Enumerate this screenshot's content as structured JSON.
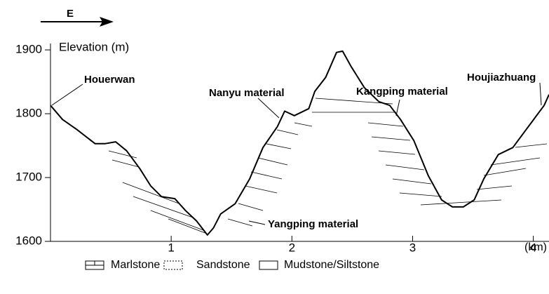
{
  "chart_data": {
    "type": "line",
    "direction": "E",
    "ylabel": "Elevation (m)",
    "xlabel": "(km)",
    "x": [
      0,
      0.1,
      0.22,
      0.37,
      0.45,
      0.54,
      0.63,
      0.74,
      0.83,
      0.92,
      1.03,
      1.12,
      1.21,
      1.3,
      1.35,
      1.41,
      1.53,
      1.65,
      1.76,
      1.88,
      1.94,
      2.02,
      2.14,
      2.19,
      2.28,
      2.37,
      2.42,
      2.49,
      2.6,
      2.72,
      2.81,
      2.9,
      3.01,
      3.13,
      3.24,
      3.33,
      3.42,
      3.51,
      3.59,
      3.71,
      3.83,
      3.94,
      4.09,
      4.13
    ],
    "values": [
      1813,
      1791,
      1775,
      1753,
      1753,
      1756,
      1742,
      1714,
      1687,
      1670,
      1667,
      1648,
      1632,
      1610,
      1621,
      1643,
      1659,
      1698,
      1747,
      1780,
      1804,
      1797,
      1808,
      1835,
      1857,
      1896,
      1898,
      1874,
      1841,
      1819,
      1813,
      1791,
      1758,
      1703,
      1665,
      1654,
      1654,
      1665,
      1698,
      1736,
      1747,
      1775,
      1813,
      1830
    ],
    "color": "#000000",
    "xlim": [
      0,
      4.13
    ],
    "xticks": [
      1,
      2,
      3,
      4
    ],
    "ylim": [
      1600,
      1910
    ],
    "yticks": [
      1600,
      1700,
      1800,
      1900
    ],
    "annotations": [
      "Houerwan",
      "Nanyu material",
      "Kangping material",
      "Houjiazhuang",
      "Yangping material"
    ],
    "legend": [
      "Marlstone",
      "Sandstone",
      "Mudstone/Siltstone"
    ]
  }
}
